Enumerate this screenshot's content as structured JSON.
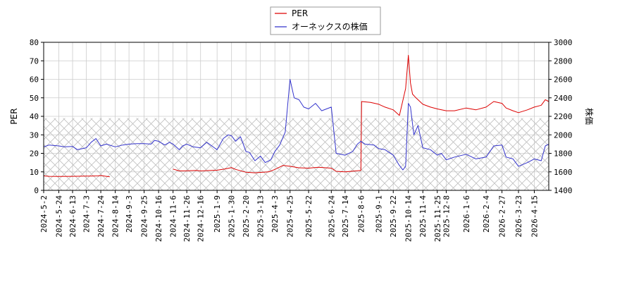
{
  "chart_data": {
    "type": "line",
    "title": "",
    "xlabel": "",
    "ylabel_left": "PER",
    "ylabel_right": "株価",
    "ylim_left": [
      0,
      80
    ],
    "ylim_right": [
      1400,
      3000
    ],
    "yticks_left": [
      0,
      10,
      20,
      30,
      40,
      50,
      60,
      70,
      80
    ],
    "yticks_right": [
      1400,
      1600,
      1800,
      2000,
      2200,
      2400,
      2600,
      2800,
      3000
    ],
    "x_start": "2024-05-02",
    "x_end": "2026-05-06",
    "xticks": [
      "2024-5-2",
      "2024-5-24",
      "2024-6-13",
      "2024-7-3",
      "2024-7-24",
      "2024-8-14",
      "2024-9-3",
      "2024-9-25",
      "2024-10-16",
      "2024-11-6",
      "2024-11-26",
      "2024-12-16",
      "2025-1-9",
      "2025-1-30",
      "2025-2-20",
      "2025-3-13",
      "2025-4-3",
      "2025-4-25",
      "2025-5-22",
      "2025-6-24",
      "2025-7-14",
      "2025-8-6",
      "2025-9-1",
      "2025-9-22",
      "2025-10-14",
      "2025-11-4",
      "2025-11-25",
      "2025-12-8",
      "2026-1-6",
      "2026-2-4",
      "2026-2-27",
      "2026-3-23",
      "2026-4-15"
    ],
    "grid": true,
    "hatch_band_left": [
      0,
      39
    ],
    "legend_position": "top-center",
    "series": [
      {
        "name": "PER",
        "axis": "left",
        "color": "#dd0000",
        "points": [
          [
            "2024-05-02",
            7.8
          ],
          [
            "2024-05-10",
            7.6
          ],
          [
            "2024-05-24",
            7.5
          ],
          [
            "2024-06-13",
            7.6
          ],
          [
            "2024-07-03",
            7.7
          ],
          [
            "2024-07-20",
            7.8
          ],
          [
            "2024-07-24",
            8.0
          ],
          [
            "2024-08-01",
            7.6
          ],
          [
            "2024-08-06",
            7.3
          ],
          [
            "2024-11-06",
            11.5
          ],
          [
            "2024-11-15",
            10.5
          ],
          [
            "2024-11-26",
            10.6
          ],
          [
            "2024-12-10",
            10.8
          ],
          [
            "2024-12-16",
            10.5
          ],
          [
            "2025-01-09",
            10.9
          ],
          [
            "2025-01-20",
            11.5
          ],
          [
            "2025-01-30",
            12.3
          ],
          [
            "2025-02-05",
            11.3
          ],
          [
            "2025-02-20",
            9.8
          ],
          [
            "2025-03-05",
            9.5
          ],
          [
            "2025-03-13",
            9.7
          ],
          [
            "2025-03-25",
            10.0
          ],
          [
            "2025-04-03",
            11.3
          ],
          [
            "2025-04-15",
            13.5
          ],
          [
            "2025-04-25",
            13.0
          ],
          [
            "2025-05-08",
            12.2
          ],
          [
            "2025-05-22",
            12.0
          ],
          [
            "2025-06-05",
            12.5
          ],
          [
            "2025-06-24",
            12.0
          ],
          [
            "2025-07-01",
            10.3
          ],
          [
            "2025-07-14",
            10.0
          ],
          [
            "2025-07-30",
            10.5
          ],
          [
            "2025-08-06",
            10.8
          ],
          [
            "2025-08-07",
            48.0
          ],
          [
            "2025-08-20",
            47.5
          ],
          [
            "2025-09-01",
            46.5
          ],
          [
            "2025-09-10",
            45.0
          ],
          [
            "2025-09-22",
            43.5
          ],
          [
            "2025-10-01",
            40.5
          ],
          [
            "2025-10-10",
            55.0
          ],
          [
            "2025-10-14",
            73.0
          ],
          [
            "2025-10-17",
            58.0
          ],
          [
            "2025-10-20",
            52.0
          ],
          [
            "2025-10-25",
            50.0
          ],
          [
            "2025-11-04",
            46.5
          ],
          [
            "2025-11-15",
            45.0
          ],
          [
            "2025-11-25",
            44.0
          ],
          [
            "2025-12-08",
            43.0
          ],
          [
            "2025-12-20",
            43.0
          ],
          [
            "2026-01-06",
            44.5
          ],
          [
            "2026-01-20",
            43.5
          ],
          [
            "2026-02-04",
            45.0
          ],
          [
            "2026-02-15",
            48.0
          ],
          [
            "2026-02-27",
            47.0
          ],
          [
            "2026-03-05",
            44.5
          ],
          [
            "2026-03-15",
            43.0
          ],
          [
            "2026-03-23",
            42.0
          ],
          [
            "2026-04-05",
            43.5
          ],
          [
            "2026-04-15",
            45.0
          ],
          [
            "2026-04-25",
            46.0
          ],
          [
            "2026-05-01",
            49.0
          ],
          [
            "2026-05-06",
            48.0
          ]
        ]
      },
      {
        "name": "オーネックスの株価",
        "axis": "right",
        "color": "#3333cc",
        "points": [
          [
            "2024-05-02",
            1870
          ],
          [
            "2024-05-10",
            1890
          ],
          [
            "2024-05-24",
            1880
          ],
          [
            "2024-06-01",
            1870
          ],
          [
            "2024-06-13",
            1875
          ],
          [
            "2024-06-20",
            1840
          ],
          [
            "2024-07-03",
            1860
          ],
          [
            "2024-07-10",
            1920
          ],
          [
            "2024-07-17",
            1960
          ],
          [
            "2024-07-24",
            1880
          ],
          [
            "2024-08-01",
            1900
          ],
          [
            "2024-08-14",
            1870
          ],
          [
            "2024-08-25",
            1890
          ],
          [
            "2024-09-03",
            1900
          ],
          [
            "2024-09-15",
            1905
          ],
          [
            "2024-09-25",
            1905
          ],
          [
            "2024-10-05",
            1900
          ],
          [
            "2024-10-10",
            1940
          ],
          [
            "2024-10-16",
            1930
          ],
          [
            "2024-10-25",
            1890
          ],
          [
            "2024-11-01",
            1920
          ],
          [
            "2024-11-06",
            1900
          ],
          [
            "2024-11-15",
            1840
          ],
          [
            "2024-11-20",
            1880
          ],
          [
            "2024-11-26",
            1900
          ],
          [
            "2024-12-05",
            1870
          ],
          [
            "2024-12-16",
            1860
          ],
          [
            "2024-12-25",
            1920
          ],
          [
            "2025-01-05",
            1860
          ],
          [
            "2025-01-09",
            1840
          ],
          [
            "2025-01-18",
            1960
          ],
          [
            "2025-01-25",
            2000
          ],
          [
            "2025-01-30",
            1990
          ],
          [
            "2025-02-05",
            1930
          ],
          [
            "2025-02-12",
            1980
          ],
          [
            "2025-02-20",
            1820
          ],
          [
            "2025-02-25",
            1810
          ],
          [
            "2025-03-05",
            1720
          ],
          [
            "2025-03-13",
            1770
          ],
          [
            "2025-03-20",
            1700
          ],
          [
            "2025-03-28",
            1730
          ],
          [
            "2025-04-03",
            1820
          ],
          [
            "2025-04-10",
            1890
          ],
          [
            "2025-04-18",
            2030
          ],
          [
            "2025-04-25",
            2600
          ],
          [
            "2025-05-01",
            2400
          ],
          [
            "2025-05-08",
            2380
          ],
          [
            "2025-05-15",
            2300
          ],
          [
            "2025-05-22",
            2280
          ],
          [
            "2025-06-01",
            2340
          ],
          [
            "2025-06-10",
            2260
          ],
          [
            "2025-06-24",
            2300
          ],
          [
            "2025-07-01",
            1800
          ],
          [
            "2025-07-14",
            1780
          ],
          [
            "2025-07-25",
            1820
          ],
          [
            "2025-08-01",
            1900
          ],
          [
            "2025-08-06",
            1930
          ],
          [
            "2025-08-12",
            1900
          ],
          [
            "2025-08-25",
            1890
          ],
          [
            "2025-09-01",
            1850
          ],
          [
            "2025-09-10",
            1840
          ],
          [
            "2025-09-22",
            1780
          ],
          [
            "2025-09-30",
            1680
          ],
          [
            "2025-10-06",
            1620
          ],
          [
            "2025-10-10",
            1660
          ],
          [
            "2025-10-14",
            2340
          ],
          [
            "2025-10-17",
            2300
          ],
          [
            "2025-10-22",
            2000
          ],
          [
            "2025-10-28",
            2100
          ],
          [
            "2025-11-04",
            1860
          ],
          [
            "2025-11-15",
            1840
          ],
          [
            "2025-11-25",
            1780
          ],
          [
            "2025-12-01",
            1800
          ],
          [
            "2025-12-08",
            1730
          ],
          [
            "2025-12-20",
            1760
          ],
          [
            "2026-01-06",
            1790
          ],
          [
            "2026-01-20",
            1740
          ],
          [
            "2026-02-04",
            1760
          ],
          [
            "2026-02-15",
            1880
          ],
          [
            "2026-02-27",
            1890
          ],
          [
            "2026-03-05",
            1760
          ],
          [
            "2026-03-15",
            1740
          ],
          [
            "2026-03-23",
            1660
          ],
          [
            "2026-04-05",
            1700
          ],
          [
            "2026-04-15",
            1740
          ],
          [
            "2026-04-25",
            1720
          ],
          [
            "2026-05-01",
            1880
          ],
          [
            "2026-05-06",
            1900
          ]
        ]
      }
    ]
  }
}
